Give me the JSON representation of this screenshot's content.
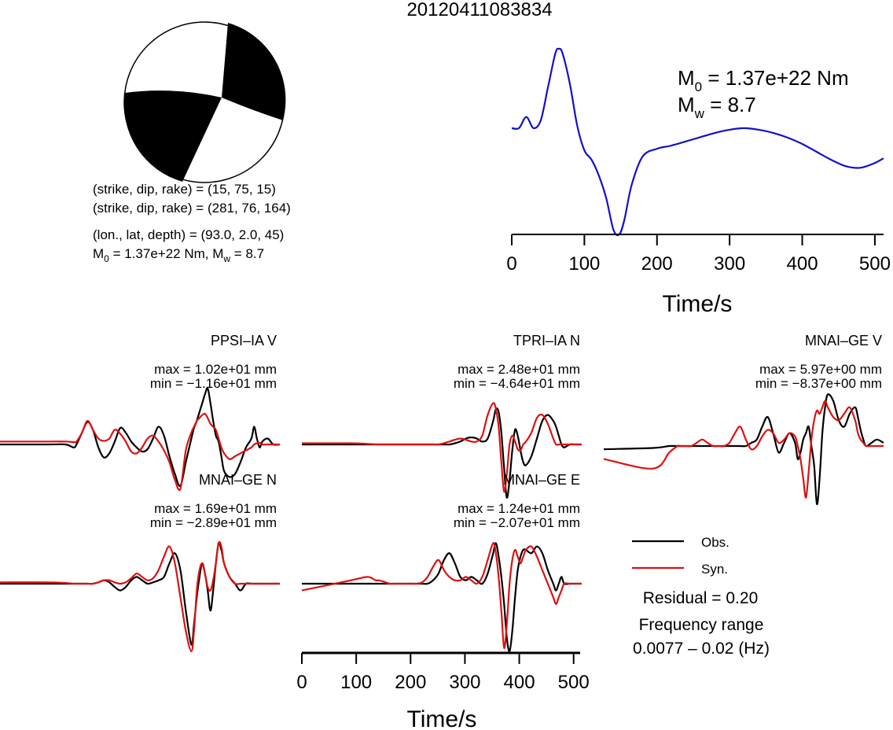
{
  "title": "20120411083834",
  "colors": {
    "obs": "#000000",
    "syn": "#dd1111",
    "stf": "#1111cc",
    "beachball_fill": "#000000"
  },
  "beachball": {
    "nodal_plane_1": "(strike, dip, rake) = (15, 75, 15)",
    "nodal_plane_2": "(strike, dip, rake) = (281, 76, 164)",
    "location": "(lon., lat, depth) = (93.0, 2.0, 45)",
    "moment_line": {
      "m0_symbol": "M",
      "m0_sub": "0",
      "m0_value": " = 1.37e+22 Nm, ",
      "mw_symbol": "M",
      "mw_sub": "w",
      "mw_value": " = 8.7"
    }
  },
  "stf_panel": {
    "m0_symbol": "M",
    "m0_sub": "0",
    "m0_value": " = 1.37e+22 Nm",
    "mw_symbol": "M",
    "mw_sub": "w",
    "mw_value": " = 8.7",
    "xlabel": "Time/s",
    "ticks": [
      "0",
      "100",
      "200",
      "300",
      "400",
      "500"
    ]
  },
  "bottom_axis": {
    "xlabel": "Time/s",
    "ticks": [
      "0",
      "100",
      "200",
      "300",
      "400",
      "500"
    ]
  },
  "legend": {
    "obs": "Obs.",
    "syn": "Syn.",
    "residual": "Residual = 0.20",
    "freq_title": "Frequency range",
    "freq_value": "0.0077 – 0.02 (Hz)"
  },
  "stations": [
    {
      "name": "PPSI–IA V",
      "max": "max = 1.02e+01 mm",
      "min": "min = −1.16e+01 mm"
    },
    {
      "name": "TPRI–IA N",
      "max": "max = 2.48e+01 mm",
      "min": "min = −4.64e+01 mm"
    },
    {
      "name": "MNAI–GE V",
      "max": "max = 5.97e+00 mm",
      "min": "min = −8.37e+00 mm"
    },
    {
      "name": "MNAI–GE N",
      "max": "max = 1.69e+01 mm",
      "min": "min = −2.89e+01 mm"
    },
    {
      "name": "MNAI–GE E",
      "max": "max = 1.24e+01 mm",
      "min": "min = −2.07e+01 mm"
    }
  ],
  "chart_data": [
    {
      "type": "line",
      "panel": "source_time_function",
      "xlabel": "Time/s",
      "xlim": [
        0,
        512
      ],
      "x": [
        0,
        10,
        20,
        30,
        40,
        50,
        60,
        65,
        70,
        80,
        90,
        100,
        110,
        120,
        130,
        140,
        148,
        155,
        165,
        180,
        200,
        220,
        250,
        280,
        300,
        320,
        340,
        360,
        380,
        400,
        420,
        440,
        460,
        480,
        500,
        512
      ],
      "series": [
        {
          "values": [
            0.5,
            0.5,
            0.57,
            0.5,
            0.55,
            0.76,
            0.97,
            1.0,
            0.97,
            0.78,
            0.52,
            0.36,
            0.3,
            0.2,
            0.06,
            -0.14,
            -0.17,
            -0.08,
            0.14,
            0.32,
            0.37,
            0.39,
            0.43,
            0.47,
            0.49,
            0.5,
            0.49,
            0.47,
            0.44,
            0.4,
            0.35,
            0.3,
            0.26,
            0.25,
            0.28,
            0.31
          ]
        }
      ]
    },
    {
      "type": "line",
      "panel": "waveforms",
      "xlabel": "Time/s",
      "xlim": [
        0,
        512
      ],
      "x": [
        0,
        90,
        120,
        135,
        140,
        150,
        160,
        170,
        180,
        190,
        200,
        210,
        220,
        230,
        240,
        250,
        260,
        270,
        280,
        290,
        300,
        310,
        320,
        330,
        340,
        350,
        355,
        360,
        365,
        370,
        375,
        380,
        385,
        390,
        395,
        400,
        405,
        410,
        420,
        430,
        440,
        450,
        460,
        465,
        470,
        475,
        480,
        490,
        500,
        512
      ],
      "series": [
        {
          "name": "Obs.",
          "station": "PPSI–IA V",
          "values": [
            0,
            0,
            0,
            -0.05,
            0,
            0.2,
            0.38,
            0.25,
            -0.05,
            -0.22,
            -0.15,
            0.05,
            0.28,
            0.2,
            0.05,
            -0.05,
            -0.12,
            -0.08,
            0.1,
            0.3,
            0.15,
            -0.2,
            -0.5,
            -0.7,
            -0.3,
            0.1,
            0.28,
            0.4,
            0.55,
            0.7,
            0.85,
            0.95,
            0.7,
            0.4,
            0.15,
            0.05,
            -0.2,
            -0.45,
            -0.55,
            -0.5,
            -0.3,
            -0.05,
            0.1,
            0.3,
            0.1,
            -0.05,
            0.05,
            0.1,
            0,
            0
          ]
        },
        {
          "name": "Syn.",
          "station": "PPSI–IA V",
          "values": [
            0.05,
            0.05,
            0.05,
            0.04,
            0.05,
            0.2,
            0.4,
            0.25,
            0.1,
            0.06,
            0.1,
            0.25,
            0.18,
            0.05,
            -0.12,
            -0.15,
            -0.05,
            0.1,
            0.15,
            0.05,
            -0.1,
            -0.3,
            -0.6,
            -0.75,
            -0.1,
            0.2,
            0.3,
            0.4,
            0.45,
            0.5,
            0.52,
            0.45,
            0.35,
            0.3,
            0.25,
            0.1,
            -0.05,
            -0.15,
            -0.25,
            -0.2,
            -0.15,
            -0.1,
            -0.05,
            0,
            0.02,
            0.03,
            0,
            0,
            0,
            0
          ]
        },
        {
          "name": "Obs.",
          "station": "TPRI–IA N",
          "values": [
            0,
            0,
            0,
            0,
            0,
            0,
            0,
            0,
            0,
            0,
            0,
            0,
            0,
            0,
            0,
            0,
            0,
            0,
            0.02,
            0.05,
            0.1,
            0.12,
            0.1,
            0.05,
            0.1,
            0.4,
            0.6,
            0.55,
            0.2,
            -0.4,
            -0.9,
            -0.6,
            -0.1,
            0.25,
            0.15,
            -0.1,
            -0.3,
            -0.35,
            -0.2,
            0.1,
            0.4,
            0.5,
            0.4,
            0.3,
            0.15,
            0,
            -0.05,
            0,
            0,
            0
          ]
        },
        {
          "name": "Syn.",
          "station": "TPRI–IA N",
          "values": [
            0.02,
            0.02,
            0.01,
            0,
            0,
            0,
            0,
            0,
            0,
            0,
            0,
            0,
            0,
            0,
            0,
            0,
            0.02,
            0.05,
            0.08,
            0.1,
            0.08,
            0.05,
            0.05,
            0.15,
            0.5,
            0.7,
            0.6,
            0.3,
            -0.3,
            -0.8,
            -0.5,
            0,
            0.15,
            0.05,
            -0.08,
            -0.1,
            0,
            0.05,
            0.2,
            0.45,
            0.5,
            0.35,
            0.1,
            0,
            0,
            0,
            0,
            0,
            0,
            0
          ]
        },
        {
          "name": "Obs.",
          "station": "MNAI–GE V",
          "values": [
            -0.05,
            -0.03,
            0,
            0,
            0,
            0,
            0,
            0,
            0,
            0,
            0,
            0,
            0,
            0,
            0,
            0,
            0,
            0.05,
            0.1,
            0.3,
            0.45,
            0.2,
            -0.1,
            0.05,
            0.2,
            0.05,
            -0.2,
            -0.1,
            0.1,
            0.2,
            0.3,
            0,
            -0.3,
            -0.9,
            -0.5,
            0.2,
            0.6,
            0.8,
            0.7,
            0.4,
            0.3,
            0.5,
            0.6,
            0.45,
            0.25,
            0.1,
            0,
            0.05,
            0.1,
            0.05
          ]
        },
        {
          "name": "Syn.",
          "station": "MNAI–GE V",
          "values": [
            -0.2,
            -0.35,
            -0.1,
            0,
            0,
            0,
            0,
            0.05,
            0.1,
            0.05,
            0,
            0,
            0,
            0.05,
            0.2,
            0.3,
            0.1,
            -0.05,
            0,
            0.15,
            0.25,
            0.2,
            0.05,
            0.1,
            0.2,
            0.15,
            0,
            -0.2,
            -0.5,
            -0.8,
            -0.4,
            0.1,
            0.4,
            0.55,
            0.5,
            0.6,
            0.7,
            0.6,
            0.45,
            0.4,
            0.5,
            0.6,
            0.4,
            0.2,
            0.1,
            0.05,
            0,
            0,
            0,
            0
          ]
        },
        {
          "name": "Obs.",
          "station": "MNAI–GE N",
          "values": [
            0,
            0,
            0,
            0,
            0,
            0,
            0,
            0,
            0.02,
            0.05,
            0.02,
            -0.05,
            -0.1,
            -0.05,
            0.05,
            0.1,
            0.05,
            0,
            0.02,
            0.05,
            0.1,
            0.3,
            0.45,
            0.2,
            -0.4,
            -0.9,
            -0.6,
            -0.2,
            0.1,
            0.3,
            0.15,
            -0.1,
            -0.4,
            -0.1,
            0.3,
            0.6,
            0.5,
            0.3,
            0.1,
            0,
            -0.1,
            0,
            0,
            0,
            0,
            0,
            0,
            0,
            0,
            0
          ]
        },
        {
          "name": "Syn.",
          "station": "MNAI–GE N",
          "values": [
            0.02,
            0.02,
            0.01,
            0,
            0,
            0,
            0,
            0,
            0.02,
            0.05,
            0.05,
            0.02,
            0,
            0.02,
            0.08,
            0.15,
            0.1,
            0.05,
            0.08,
            0.2,
            0.4,
            0.55,
            0.3,
            -0.2,
            -0.7,
            -1.0,
            -0.7,
            -0.1,
            0.2,
            0.3,
            0.15,
            -0.05,
            -0.1,
            0.05,
            0.3,
            0.6,
            0.55,
            0.3,
            0.1,
            0,
            0,
            0,
            0,
            0,
            0,
            0,
            0,
            0,
            0,
            0
          ]
        },
        {
          "name": "Obs.",
          "station": "MNAI–GE E",
          "values": [
            0,
            0,
            0,
            0,
            0,
            0,
            0,
            0,
            0,
            0,
            0,
            0,
            0,
            0,
            0.05,
            0.15,
            0.35,
            0.45,
            0.3,
            0.1,
            0.05,
            0.1,
            0.05,
            0,
            0.15,
            0.45,
            0.6,
            0.4,
            0.1,
            -0.3,
            -0.8,
            -1.0,
            -0.7,
            -0.2,
            0.2,
            0.4,
            0.5,
            0.5,
            0.45,
            0.55,
            0.45,
            0.2,
            0,
            -0.1,
            0,
            0.1,
            0,
            0,
            0,
            0
          ]
        },
        {
          "name": "Syn.",
          "station": "MNAI–GE E",
          "values": [
            -0.1,
            0.05,
            0.1,
            0.05,
            0.05,
            0.03,
            0,
            0,
            0,
            0,
            0,
            0,
            0.02,
            0.1,
            0.25,
            0.35,
            0.2,
            0.1,
            0.05,
            0.05,
            0.1,
            0.05,
            0,
            0.1,
            0.35,
            0.6,
            0.45,
            0.1,
            -0.4,
            -0.95,
            -0.6,
            0,
            0.35,
            0.5,
            0.4,
            0.3,
            0.4,
            0.5,
            0.55,
            0.4,
            0.2,
            0,
            -0.2,
            -0.3,
            -0.2,
            -0.1,
            0,
            0,
            0,
            0
          ]
        }
      ]
    }
  ]
}
